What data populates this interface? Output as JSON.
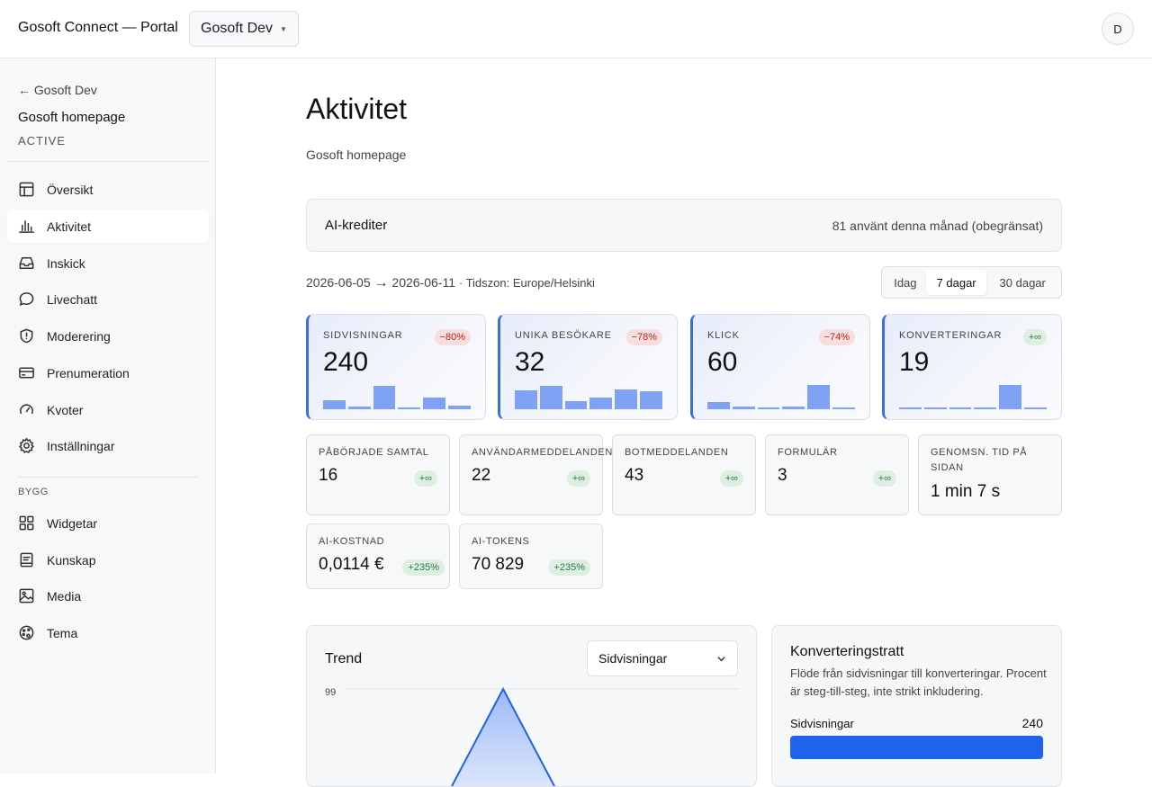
{
  "header": {
    "app_title": "Gosoft Connect — Portal",
    "org": "Gosoft Dev",
    "avatar_initial": "D"
  },
  "sidebar": {
    "back": "← Gosoft Dev",
    "site_name": "Gosoft homepage",
    "site_status": "ACTIVE",
    "items": [
      {
        "label": "Översikt",
        "icon": "table-icon"
      },
      {
        "label": "Aktivitet",
        "icon": "bar-chart-icon",
        "active": true
      },
      {
        "label": "Inskick",
        "icon": "inbox-icon"
      },
      {
        "label": "Livechatt",
        "icon": "chat-bubble-icon"
      },
      {
        "label": "Moderering",
        "icon": "shield-alert-icon"
      },
      {
        "label": "Prenumeration",
        "icon": "credit-card-icon"
      },
      {
        "label": "Kvoter",
        "icon": "gauge-icon"
      },
      {
        "label": "Inställningar",
        "icon": "gear-icon"
      }
    ],
    "section_build": "BYGG",
    "build_items": [
      {
        "label": "Widgetar",
        "icon": "grid-icon"
      },
      {
        "label": "Kunskap",
        "icon": "book-icon"
      },
      {
        "label": "Media",
        "icon": "image-icon"
      },
      {
        "label": "Tema",
        "icon": "palette-icon"
      }
    ]
  },
  "main": {
    "title": "Aktivitet",
    "subtitle": "Gosoft homepage",
    "credits": {
      "label": "AI-krediter",
      "value": "81 använt denna månad (obegränsat)"
    },
    "range": {
      "start": "2026-06-05",
      "arrow": "→",
      "end": "2026-06-11",
      "timezone": "· Tidszon: Europe/Helsinki"
    },
    "periods": [
      "Idag",
      "7 dagar",
      "30 dagar"
    ],
    "selected_period": "7 dagar",
    "kpis": [
      {
        "label": "SIDVISNINGAR",
        "value": "240",
        "delta": "−80%",
        "trend": "neg",
        "spark": [
          0.35,
          0.12,
          0.92,
          0.06,
          0.45,
          0.15
        ]
      },
      {
        "label": "UNIKA BESÖKARE",
        "value": "32",
        "delta": "−78%",
        "trend": "neg",
        "spark": [
          0.75,
          0.92,
          0.32,
          0.48,
          0.78,
          0.72
        ]
      },
      {
        "label": "KLICK",
        "value": "60",
        "delta": "−74%",
        "trend": "neg",
        "spark": [
          0.3,
          0.1,
          0.03,
          0.1,
          0.95,
          0.03
        ]
      },
      {
        "label": "KONVERTERINGAR",
        "value": "19",
        "delta": "+∞",
        "trend": "pos",
        "spark": [
          0.03,
          0.03,
          0.03,
          0.06,
          0.95,
          0.03
        ]
      }
    ],
    "metrics": [
      {
        "label": "PÅBÖRJADE SAMTAL",
        "value": "16",
        "delta": "+∞"
      },
      {
        "label": "ANVÄNDARMEDDELANDEN",
        "value": "22",
        "delta": "+∞"
      },
      {
        "label": "BOTMEDDELANDEN",
        "value": "43",
        "delta": "+∞"
      },
      {
        "label": "FORMULÄR",
        "value": "3",
        "delta": "+∞"
      },
      {
        "label": "GENOMSN. TID PÅ SIDAN",
        "value": "1 min 7 s",
        "delta": ""
      },
      {
        "label": "AI-KOSTNAD",
        "value": "0,0114 €",
        "delta": "+235%"
      },
      {
        "label": "AI-TOKENS",
        "value": "70 829",
        "delta": "+235%"
      }
    ],
    "trend": {
      "title": "Trend",
      "metric": "Sidvisningar",
      "y_max_label": "99"
    },
    "funnel": {
      "title": "Konverteringstratt",
      "description": "Flöde från sidvisningar till konverteringar. Procent är steg-till-steg, inte strikt inkludering.",
      "row_label": "Sidvisningar",
      "row_value": "240"
    }
  },
  "colors": {
    "accent": "#1e63e9",
    "kpi_border": "#3a6fe0",
    "spark": "#7fa2f5",
    "neg_badge": "#b3261e",
    "pos_badge": "#2c7a47"
  }
}
